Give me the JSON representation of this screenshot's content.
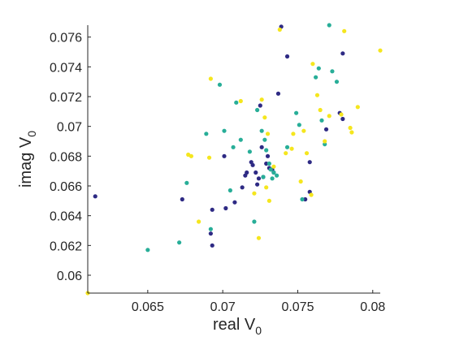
{
  "chart_data": {
    "type": "scatter",
    "xlabel": "real V",
    "xlabel_sub": "0",
    "ylabel": "imag V",
    "ylabel_sub": "0",
    "xlim": [
      0.061,
      0.0805
    ],
    "ylim": [
      0.0588,
      0.0768
    ],
    "xticks": [
      0.065,
      0.07,
      0.075,
      0.08
    ],
    "xtick_labels": [
      "0.065",
      "0.07",
      "0.075",
      "0.08"
    ],
    "yticks": [
      0.06,
      0.062,
      0.064,
      0.066,
      0.068,
      0.07,
      0.072,
      0.074,
      0.076
    ],
    "ytick_labels": [
      "0.06",
      "0.062",
      "0.064",
      "0.066",
      "0.068",
      "0.07",
      "0.072",
      "0.074",
      "0.076"
    ],
    "grid": false,
    "series": [
      {
        "color": "#2e2a84",
        "points": [
          [
            0.0615,
            0.0653
          ],
          [
            0.0673,
            0.0651
          ],
          [
            0.0692,
            0.0628
          ],
          [
            0.0693,
            0.062
          ],
          [
            0.0693,
            0.0644
          ],
          [
            0.0701,
            0.068
          ],
          [
            0.0702,
            0.0645
          ],
          [
            0.0708,
            0.0649
          ],
          [
            0.0713,
            0.0659
          ],
          [
            0.0715,
            0.0667
          ],
          [
            0.0716,
            0.0669
          ],
          [
            0.0719,
            0.0676
          ],
          [
            0.072,
            0.0674
          ],
          [
            0.0722,
            0.0669
          ],
          [
            0.0723,
            0.0661
          ],
          [
            0.0724,
            0.0665
          ],
          [
            0.0725,
            0.0714
          ],
          [
            0.0726,
            0.0686
          ],
          [
            0.0727,
            0.0666
          ],
          [
            0.0729,
            0.0675
          ],
          [
            0.073,
            0.068
          ],
          [
            0.0731,
            0.0672
          ],
          [
            0.0733,
            0.0671
          ],
          [
            0.0734,
            0.0669
          ],
          [
            0.0737,
            0.0722
          ],
          [
            0.0739,
            0.0767
          ],
          [
            0.0743,
            0.0747
          ],
          [
            0.0755,
            0.0651
          ],
          [
            0.0758,
            0.0676
          ],
          [
            0.0758,
            0.0656
          ],
          [
            0.0769,
            0.0698
          ],
          [
            0.0778,
            0.0709
          ],
          [
            0.078,
            0.0749
          ],
          [
            0.078,
            0.0705
          ]
        ]
      },
      {
        "color": "#28ae98",
        "points": [
          [
            0.065,
            0.0617
          ],
          [
            0.0671,
            0.0622
          ],
          [
            0.0676,
            0.0662
          ],
          [
            0.0689,
            0.0695
          ],
          [
            0.0692,
            0.0631
          ],
          [
            0.0698,
            0.0728
          ],
          [
            0.0701,
            0.0697
          ],
          [
            0.0705,
            0.0657
          ],
          [
            0.0707,
            0.0686
          ],
          [
            0.0709,
            0.0716
          ],
          [
            0.0712,
            0.0691
          ],
          [
            0.0718,
            0.0683
          ],
          [
            0.0721,
            0.0636
          ],
          [
            0.0723,
            0.0711
          ],
          [
            0.0726,
            0.0697
          ],
          [
            0.0727,
            0.0666
          ],
          [
            0.0728,
            0.0691
          ],
          [
            0.0729,
            0.0684
          ],
          [
            0.0731,
            0.0675
          ],
          [
            0.0732,
            0.0671
          ],
          [
            0.0733,
            0.0665
          ],
          [
            0.0734,
            0.0669
          ],
          [
            0.0736,
            0.0667
          ],
          [
            0.0743,
            0.0686
          ],
          [
            0.0749,
            0.0709
          ],
          [
            0.0751,
            0.0701
          ],
          [
            0.0753,
            0.0651
          ],
          [
            0.0762,
            0.0733
          ],
          [
            0.0764,
            0.0739
          ],
          [
            0.0766,
            0.0704
          ],
          [
            0.0768,
            0.0688
          ],
          [
            0.0771,
            0.0768
          ],
          [
            0.0773,
            0.0737
          ],
          [
            0.0776,
            0.073
          ]
        ]
      },
      {
        "color": "#f5e61e",
        "points": [
          [
            0.061,
            0.0588
          ],
          [
            0.0677,
            0.0681
          ],
          [
            0.0679,
            0.068
          ],
          [
            0.0684,
            0.0636
          ],
          [
            0.0691,
            0.0679
          ],
          [
            0.0692,
            0.0732
          ],
          [
            0.0712,
            0.0717
          ],
          [
            0.0721,
            0.0655
          ],
          [
            0.0724,
            0.0625
          ],
          [
            0.0726,
            0.0718
          ],
          [
            0.0728,
            0.0706
          ],
          [
            0.0729,
            0.0659
          ],
          [
            0.073,
            0.0695
          ],
          [
            0.0731,
            0.065
          ],
          [
            0.0734,
            0.0673
          ],
          [
            0.0738,
            0.0765
          ],
          [
            0.0742,
            0.0682
          ],
          [
            0.0746,
            0.0685
          ],
          [
            0.0747,
            0.0695
          ],
          [
            0.0752,
            0.0663
          ],
          [
            0.0754,
            0.0697
          ],
          [
            0.0756,
            0.0682
          ],
          [
            0.0759,
            0.0654
          ],
          [
            0.076,
            0.0742
          ],
          [
            0.0763,
            0.0721
          ],
          [
            0.0765,
            0.0711
          ],
          [
            0.0768,
            0.069
          ],
          [
            0.0771,
            0.0707
          ],
          [
            0.0779,
            0.0708
          ],
          [
            0.0781,
            0.0764
          ],
          [
            0.0785,
            0.0699
          ],
          [
            0.0786,
            0.0696
          ],
          [
            0.079,
            0.0713
          ],
          [
            0.0805,
            0.0751
          ]
        ]
      }
    ]
  }
}
